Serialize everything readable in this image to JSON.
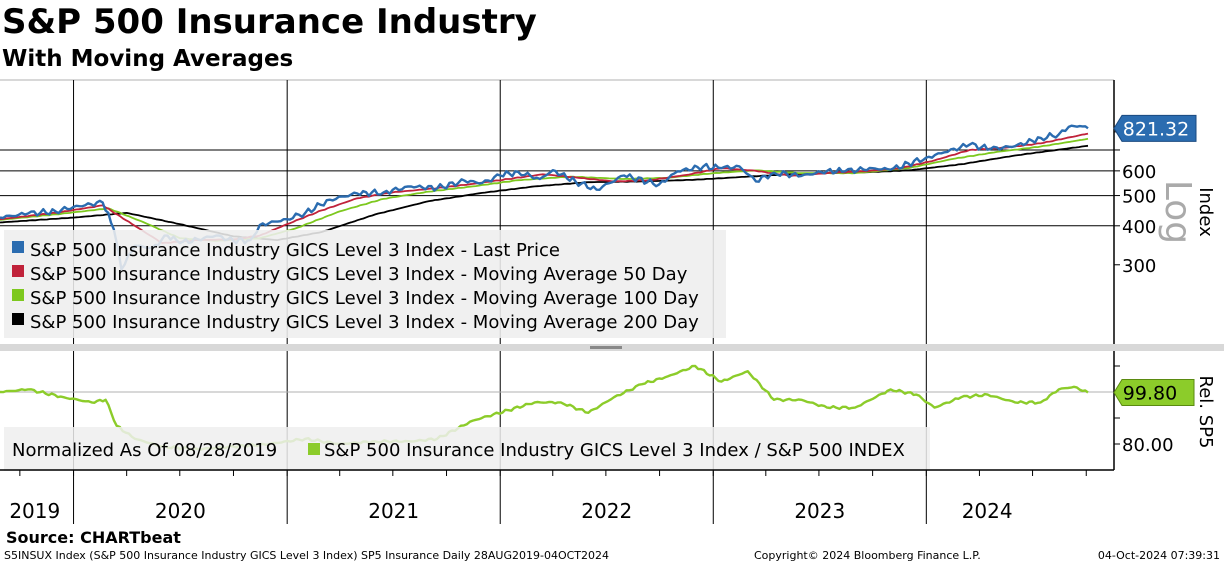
{
  "header": {
    "title": "S&P 500 Insurance Industry",
    "subtitle": "With Moving Averages"
  },
  "source": "Source: CHARTbeat",
  "footer": {
    "left": "S5INSUX Index (S&P 500 Insurance Industry GICS Level 3 Index) SP5 Insurance  Daily 28AUG2019-04OCT2024",
    "middle": "Copyright© 2024 Bloomberg Finance L.P.",
    "right": "04-Oct-2024 07:39:31"
  },
  "colors": {
    "last_price": "#2b6cb0",
    "ma50": "#c0223a",
    "ma100": "#7dc81e",
    "ma200": "#000000",
    "relative": "#8ccc2a",
    "relative_faded": "#b8e08a",
    "last_price_badge": "#2b6cb0",
    "relative_badge": "#8ccc2a"
  },
  "chart_data": [
    {
      "type": "line",
      "scale": "log",
      "ylabel": "Index",
      "scale_label": "Log",
      "yticks": [
        300,
        400,
        500,
        600
      ],
      "tick_labels": [
        "300",
        "400",
        "500",
        "600"
      ],
      "ylim": [
        220,
        900
      ],
      "x_start": "2019-08-28",
      "x_end": "2024-10-04",
      "year_labels": [
        "2019",
        "2020",
        "2021",
        "2022",
        "2023",
        "2024"
      ],
      "last_value": 821.32,
      "last_value_label": "821.32",
      "series": [
        {
          "name": "S&P 500 Insurance Industry GICS Level 3 Index - Last Price",
          "points": [
            [
              "2019-08-28",
              425
            ],
            [
              "2019-10-15",
              438
            ],
            [
              "2019-12-01",
              445
            ],
            [
              "2020-01-01",
              460
            ],
            [
              "2020-02-20",
              475
            ],
            [
              "2020-03-10",
              390
            ],
            [
              "2020-03-23",
              290
            ],
            [
              "2020-04-15",
              345
            ],
            [
              "2020-05-15",
              340
            ],
            [
              "2020-06-10",
              372
            ],
            [
              "2020-07-01",
              352
            ],
            [
              "2020-08-01",
              362
            ],
            [
              "2020-09-01",
              372
            ],
            [
              "2020-10-01",
              358
            ],
            [
              "2020-10-30",
              360
            ],
            [
              "2020-11-15",
              402
            ],
            [
              "2020-12-31",
              420
            ],
            [
              "2021-02-01",
              440
            ],
            [
              "2021-03-15",
              485
            ],
            [
              "2021-05-01",
              508
            ],
            [
              "2021-06-15",
              512
            ],
            [
              "2021-08-01",
              535
            ],
            [
              "2021-09-15",
              528
            ],
            [
              "2021-11-01",
              558
            ],
            [
              "2021-12-01",
              548
            ],
            [
              "2022-01-01",
              580
            ],
            [
              "2022-02-01",
              595
            ],
            [
              "2022-03-10",
              565
            ],
            [
              "2022-04-01",
              603
            ],
            [
              "2022-05-10",
              555
            ],
            [
              "2022-06-15",
              522
            ],
            [
              "2022-08-01",
              580
            ],
            [
              "2022-09-30",
              542
            ],
            [
              "2022-11-01",
              598
            ],
            [
              "2022-12-15",
              620
            ],
            [
              "2023-01-15",
              612
            ],
            [
              "2023-02-15",
              620
            ],
            [
              "2023-03-15",
              555
            ],
            [
              "2023-04-15",
              592
            ],
            [
              "2023-06-01",
              578
            ],
            [
              "2023-07-15",
              600
            ],
            [
              "2023-08-15",
              598
            ],
            [
              "2023-10-01",
              612
            ],
            [
              "2023-11-01",
              605
            ],
            [
              "2023-12-31",
              660
            ],
            [
              "2024-02-01",
              688
            ],
            [
              "2024-03-15",
              728
            ],
            [
              "2024-04-20",
              705
            ],
            [
              "2024-06-01",
              720
            ],
            [
              "2024-07-15",
              765
            ],
            [
              "2024-08-15",
              785
            ],
            [
              "2024-09-01",
              830
            ],
            [
              "2024-09-20",
              835
            ],
            [
              "2024-10-04",
              821.32
            ]
          ]
        },
        {
          "name": "S&P 500 Insurance Industry GICS Level 3 Index - Moving Average 50 Day",
          "points": [
            [
              "2019-08-28",
              420
            ],
            [
              "2019-12-01",
              440
            ],
            [
              "2020-02-20",
              465
            ],
            [
              "2020-04-15",
              400
            ],
            [
              "2020-06-01",
              352
            ],
            [
              "2020-08-01",
              360
            ],
            [
              "2020-10-01",
              362
            ],
            [
              "2020-11-15",
              372
            ],
            [
              "2021-01-01",
              405
            ],
            [
              "2021-03-01",
              448
            ],
            [
              "2021-05-01",
              490
            ],
            [
              "2021-07-01",
              512
            ],
            [
              "2021-09-15",
              528
            ],
            [
              "2021-11-15",
              545
            ],
            [
              "2022-01-15",
              565
            ],
            [
              "2022-03-15",
              585
            ],
            [
              "2022-05-15",
              570
            ],
            [
              "2022-07-15",
              555
            ],
            [
              "2022-09-15",
              560
            ],
            [
              "2022-11-15",
              582
            ],
            [
              "2023-01-15",
              612
            ],
            [
              "2023-03-15",
              600
            ],
            [
              "2023-05-15",
              578
            ],
            [
              "2023-07-15",
              590
            ],
            [
              "2023-09-15",
              598
            ],
            [
              "2023-11-15",
              610
            ],
            [
              "2024-01-15",
              648
            ],
            [
              "2024-03-15",
              700
            ],
            [
              "2024-05-15",
              712
            ],
            [
              "2024-07-15",
              735
            ],
            [
              "2024-10-04",
              790
            ]
          ]
        },
        {
          "name": "S&P 500 Insurance Industry GICS Level 3 Index - Moving Average 100 Day",
          "points": [
            [
              "2019-08-28",
              418
            ],
            [
              "2019-12-01",
              435
            ],
            [
              "2020-03-01",
              455
            ],
            [
              "2020-05-01",
              410
            ],
            [
              "2020-07-01",
              365
            ],
            [
              "2020-09-01",
              358
            ],
            [
              "2020-11-15",
              365
            ],
            [
              "2021-01-15",
              392
            ],
            [
              "2021-04-01",
              445
            ],
            [
              "2021-06-15",
              488
            ],
            [
              "2021-09-01",
              515
            ],
            [
              "2021-11-15",
              535
            ],
            [
              "2022-02-01",
              560
            ],
            [
              "2022-05-01",
              575
            ],
            [
              "2022-08-01",
              565
            ],
            [
              "2022-10-15",
              570
            ],
            [
              "2023-01-01",
              590
            ],
            [
              "2023-03-15",
              602
            ],
            [
              "2023-06-01",
              590
            ],
            [
              "2023-09-01",
              590
            ],
            [
              "2023-12-01",
              612
            ],
            [
              "2024-02-15",
              655
            ],
            [
              "2024-05-01",
              690
            ],
            [
              "2024-07-15",
              718
            ],
            [
              "2024-10-04",
              760
            ]
          ]
        },
        {
          "name": "S&P 500 Insurance Industry GICS Level 3 Index - Moving Average 200 Day",
          "points": [
            [
              "2019-08-28",
              410
            ],
            [
              "2020-01-01",
              425
            ],
            [
              "2020-04-01",
              440
            ],
            [
              "2020-07-01",
              405
            ],
            [
              "2020-10-01",
              370
            ],
            [
              "2020-12-15",
              360
            ],
            [
              "2021-03-01",
              382
            ],
            [
              "2021-06-01",
              435
            ],
            [
              "2021-09-01",
              480
            ],
            [
              "2021-12-01",
              510
            ],
            [
              "2022-03-01",
              535
            ],
            [
              "2022-06-01",
              552
            ],
            [
              "2022-09-01",
              555
            ],
            [
              "2022-12-01",
              562
            ],
            [
              "2023-03-01",
              575
            ],
            [
              "2023-06-01",
              588
            ],
            [
              "2023-09-01",
              592
            ],
            [
              "2023-12-01",
              602
            ],
            [
              "2024-03-01",
              630
            ],
            [
              "2024-06-01",
              672
            ],
            [
              "2024-10-04",
              722
            ]
          ]
        }
      ]
    },
    {
      "type": "line",
      "ylabel": "Rel. SP5",
      "yticks": [
        80.0
      ],
      "tick_labels": [
        "80.00"
      ],
      "ylim": [
        75,
        115
      ],
      "last_value": 99.8,
      "last_value_label": "99.80",
      "legend": "Normalized As Of 08/28/2019",
      "series": [
        {
          "name": "S&P 500 Insurance Industry GICS Level 3 Index / S&P 500 INDEX",
          "points": [
            [
              "2019-08-28",
              100
            ],
            [
              "2019-10-15",
              101
            ],
            [
              "2019-12-15",
              98
            ],
            [
              "2020-02-01",
              96
            ],
            [
              "2020-02-25",
              97
            ],
            [
              "2020-03-15",
              87
            ],
            [
              "2020-04-15",
              82
            ],
            [
              "2020-06-01",
              79
            ],
            [
              "2020-08-01",
              78
            ],
            [
              "2020-10-01",
              79
            ],
            [
              "2020-12-01",
              80
            ],
            [
              "2021-02-01",
              82
            ],
            [
              "2021-04-01",
              80
            ],
            [
              "2021-06-01",
              81
            ],
            [
              "2021-08-01",
              81
            ],
            [
              "2021-09-15",
              82
            ],
            [
              "2021-11-15",
              89
            ],
            [
              "2022-01-15",
              93
            ],
            [
              "2022-03-01",
              96
            ],
            [
              "2022-04-15",
              96
            ],
            [
              "2022-06-01",
              92
            ],
            [
              "2022-07-15",
              98
            ],
            [
              "2022-09-01",
              103
            ],
            [
              "2022-10-15",
              106
            ],
            [
              "2022-12-01",
              110
            ],
            [
              "2023-01-15",
              104
            ],
            [
              "2023-03-01",
              108
            ],
            [
              "2023-04-15",
              97
            ],
            [
              "2023-06-01",
              97
            ],
            [
              "2023-07-15",
              94
            ],
            [
              "2023-09-01",
              94
            ],
            [
              "2023-11-01",
              101
            ],
            [
              "2023-12-15",
              99
            ],
            [
              "2024-01-15",
              94
            ],
            [
              "2024-03-01",
              98
            ],
            [
              "2024-04-15",
              99
            ],
            [
              "2024-06-01",
              96
            ],
            [
              "2024-07-15",
              96
            ],
            [
              "2024-08-15",
              101
            ],
            [
              "2024-09-10",
              102
            ],
            [
              "2024-10-04",
              99.8
            ]
          ]
        }
      ]
    }
  ]
}
